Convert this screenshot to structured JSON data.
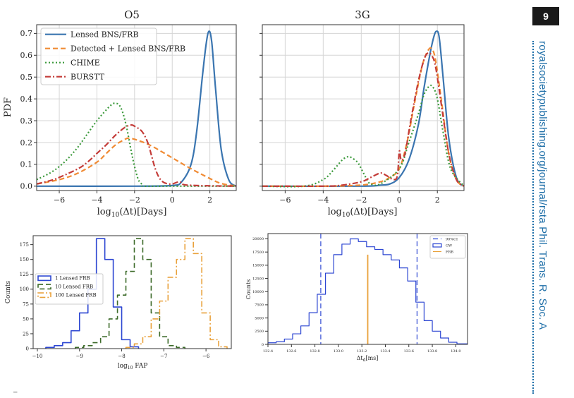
{
  "page": {
    "number": "9",
    "journal": "royalsocietypublishing.org/journal/rsta  Phil. Trans. R. Soc. A",
    "footnote_glyph": "⁻"
  },
  "chart_data": [
    {
      "type": "line",
      "title": "O5",
      "xlabel": "log10(Δt)[Days]",
      "ylabel": "PDF",
      "xlim": [
        -7.2,
        3.4
      ],
      "ylim": [
        -0.02,
        0.74
      ],
      "xticks": [
        "−6",
        "−4",
        "−2",
        "0",
        "2"
      ],
      "yticks": [
        "0.0",
        "0.1",
        "0.2",
        "0.3",
        "0.4",
        "0.5",
        "0.6",
        "0.7"
      ],
      "grid": true,
      "legend": "top-left",
      "series": [
        {
          "name": "Lensed BNS/FRB",
          "color": "#3a75b0",
          "style": "solid",
          "x": [
            -7.2,
            -2,
            0,
            0.5,
            1,
            1.3,
            1.6,
            1.8,
            1.95,
            2.1,
            2.3,
            2.6,
            3.0,
            3.4
          ],
          "y": [
            0.0,
            0.0,
            0.003,
            0.02,
            0.1,
            0.25,
            0.5,
            0.65,
            0.71,
            0.66,
            0.45,
            0.17,
            0.03,
            0.0
          ]
        },
        {
          "name": "Detected + Lensed BNS/FRB",
          "color": "#f08b34",
          "style": "dashed",
          "x": [
            -7.2,
            -6,
            -5,
            -4,
            -3.5,
            -3,
            -2.5,
            -2.3,
            -2,
            -1.5,
            -1,
            0,
            1,
            2,
            2.5,
            3,
            3.4
          ],
          "y": [
            0.01,
            0.03,
            0.06,
            0.11,
            0.15,
            0.19,
            0.215,
            0.22,
            0.215,
            0.2,
            0.18,
            0.13,
            0.08,
            0.035,
            0.015,
            0.005,
            0.002
          ]
        },
        {
          "name": "CHIME",
          "color": "#3c9a3c",
          "style": "dotted",
          "x": [
            -7.2,
            -6.5,
            -6,
            -5.5,
            -5,
            -4.5,
            -4,
            -3.5,
            -3.2,
            -3,
            -2.8,
            -2.6,
            -2.4,
            -2.2,
            -2,
            -1.8,
            -1.6,
            -1.5,
            0,
            3.4
          ],
          "y": [
            0.03,
            0.06,
            0.09,
            0.13,
            0.18,
            0.24,
            0.3,
            0.35,
            0.375,
            0.38,
            0.37,
            0.33,
            0.26,
            0.17,
            0.09,
            0.03,
            0.008,
            0.0,
            0.0,
            0.0
          ]
        },
        {
          "name": "BURSTT",
          "color": "#c43c39",
          "style": "dashdot",
          "x": [
            -7.2,
            -6.5,
            -6,
            -5,
            -4.5,
            -4,
            -3.5,
            -3,
            -2.5,
            -2.2,
            -2,
            -1.6,
            -1.3,
            -1.1,
            -0.9,
            -0.7,
            -0.5,
            -0.3,
            0,
            0.4,
            0.8,
            3.4
          ],
          "y": [
            0.01,
            0.025,
            0.04,
            0.08,
            0.11,
            0.15,
            0.19,
            0.235,
            0.27,
            0.28,
            0.275,
            0.25,
            0.2,
            0.14,
            0.08,
            0.04,
            0.02,
            0.012,
            0.01,
            0.02,
            0.005,
            0.0
          ]
        }
      ]
    },
    {
      "type": "line",
      "title": "3G",
      "xlabel": "log10(Δt)[Days]",
      "xlim": [
        -7.2,
        3.4
      ],
      "ylim": [
        -0.02,
        0.74
      ],
      "xticks": [
        "−6",
        "−4",
        "−2",
        "0",
        "2"
      ],
      "grid": true,
      "series": [
        {
          "name": "Lensed BNS/FRB",
          "color": "#3a75b0",
          "style": "solid",
          "x": [
            -7.2,
            -2,
            -1,
            -0.5,
            0,
            0.5,
            1,
            1.3,
            1.6,
            1.8,
            1.95,
            2.1,
            2.3,
            2.6,
            3.0,
            3.4
          ],
          "y": [
            0.0,
            0.0,
            0.005,
            0.01,
            0.04,
            0.12,
            0.28,
            0.45,
            0.6,
            0.68,
            0.71,
            0.68,
            0.5,
            0.22,
            0.04,
            0.0
          ]
        },
        {
          "name": "Detected + Lensed BNS/FRB",
          "color": "#f08b34",
          "style": "dashed",
          "x": [
            -7.2,
            -4,
            -2,
            -1,
            -0.5,
            0,
            0.4,
            0.8,
            1.2,
            1.5,
            1.7,
            1.9,
            2.2,
            2.6,
            3.0,
            3.4
          ],
          "y": [
            0.0,
            0.0,
            0.005,
            0.02,
            0.04,
            0.08,
            0.2,
            0.38,
            0.55,
            0.62,
            0.63,
            0.58,
            0.4,
            0.15,
            0.03,
            0.0
          ]
        },
        {
          "name": "CHIME",
          "color": "#3c9a3c",
          "style": "dotted",
          "x": [
            -7.2,
            -5,
            -4,
            -3.5,
            -3,
            -2.7,
            -2.5,
            -2.2,
            -2,
            -1.7,
            -1.5,
            -1,
            0,
            0.5,
            1,
            1.3,
            1.6,
            1.8,
            2,
            2.3,
            2.7,
            3.4
          ],
          "y": [
            0.0,
            0.0,
            0.03,
            0.07,
            0.12,
            0.135,
            0.13,
            0.11,
            0.08,
            0.03,
            0.01,
            0.01,
            0.08,
            0.2,
            0.33,
            0.42,
            0.46,
            0.45,
            0.4,
            0.25,
            0.08,
            0.0
          ]
        },
        {
          "name": "BURSTT",
          "color": "#c43c39",
          "style": "dashdot",
          "x": [
            -7.2,
            -4,
            -3,
            -2,
            -1.5,
            -1,
            -0.7,
            -0.3,
            -0.1,
            0,
            0.1,
            0.3,
            0.6,
            1.0,
            1.3,
            1.5,
            1.7,
            1.9,
            2.2,
            2.6,
            3.0,
            3.4
          ],
          "y": [
            0.0,
            0.0,
            0.005,
            0.02,
            0.04,
            0.06,
            0.05,
            0.03,
            0.05,
            0.16,
            0.12,
            0.15,
            0.3,
            0.48,
            0.58,
            0.61,
            0.6,
            0.55,
            0.38,
            0.15,
            0.03,
            0.0
          ]
        }
      ]
    },
    {
      "type": "histogram",
      "xlabel": "log10 FAP",
      "ylabel": "Counts",
      "xlim": [
        -10.1,
        -5.4
      ],
      "ylim": [
        0,
        190
      ],
      "xticks": [
        "−10",
        "−9",
        "−8",
        "−7",
        "−6"
      ],
      "yticks": [
        "0",
        "25",
        "50",
        "75",
        "100",
        "125",
        "150",
        "175"
      ],
      "legend": "center-left",
      "series": [
        {
          "name": "1 Lensed FRB",
          "color": "#2c46d2",
          "style": "solid",
          "edges": [
            -9.8,
            -9.6,
            -9.4,
            -9.2,
            -9.0,
            -8.8,
            -8.6,
            -8.4,
            -8.2,
            -8.0,
            -7.8,
            -7.6
          ],
          "counts": [
            2,
            5,
            10,
            30,
            60,
            100,
            185,
            150,
            70,
            15,
            3
          ]
        },
        {
          "name": "10 Lensed FRB",
          "color": "#3d6b2a",
          "style": "dashed",
          "edges": [
            -9.1,
            -8.9,
            -8.7,
            -8.5,
            -8.3,
            -8.1,
            -7.9,
            -7.7,
            -7.5,
            -7.3,
            -7.1,
            -6.9,
            -6.7,
            -6.5
          ],
          "counts": [
            2,
            5,
            10,
            20,
            50,
            90,
            130,
            185,
            150,
            60,
            20,
            5,
            2
          ]
        },
        {
          "name": "100 Lensed FRB",
          "color": "#e9a13b",
          "style": "dashdot",
          "edges": [
            -7.9,
            -7.7,
            -7.5,
            -7.3,
            -7.1,
            -6.9,
            -6.7,
            -6.5,
            -6.3,
            -6.1,
            -5.9,
            -5.7,
            -5.5
          ],
          "counts": [
            2,
            8,
            20,
            50,
            80,
            120,
            150,
            185,
            160,
            60,
            15,
            3
          ]
        }
      ]
    },
    {
      "type": "histogram",
      "xlabel": "Δt_d[ms]",
      "ylabel": "Counts",
      "xlim": [
        132.4,
        134.1
      ],
      "ylim": [
        0,
        21000
      ],
      "xticks": [
        "132.4",
        "132.6",
        "132.8",
        "133.0",
        "133.2",
        "133.4",
        "133.6",
        "133.8",
        "134.0"
      ],
      "yticks": [
        "0",
        "2500",
        "5000",
        "7500",
        "10000",
        "12500",
        "15000",
        "17500",
        "20000"
      ],
      "legend": "top-right",
      "series": [
        {
          "name": "GW",
          "color": "#2c46d2",
          "style": "solid",
          "edges": [
            132.4,
            132.47,
            132.54,
            132.61,
            132.68,
            132.75,
            132.82,
            132.89,
            132.96,
            133.03,
            133.1,
            133.17,
            133.24,
            133.31,
            133.38,
            133.45,
            133.52,
            133.59,
            133.66,
            133.73,
            133.8,
            133.87,
            133.94,
            134.01,
            134.1
          ],
          "counts": [
            300,
            500,
            1000,
            2000,
            3500,
            6000,
            9500,
            13500,
            17000,
            19000,
            20000,
            19500,
            18500,
            18000,
            17000,
            16000,
            14500,
            12000,
            8000,
            4500,
            2500,
            1200,
            400,
            100
          ]
        },
        {
          "name": "FRB",
          "color": "#e9a13b",
          "style": "solid",
          "x": 133.25,
          "count": 17000
        },
        {
          "name": "90%CI",
          "color": "#2c46d2",
          "style": "dashed",
          "x": [
            132.85,
            133.67
          ]
        }
      ]
    }
  ]
}
